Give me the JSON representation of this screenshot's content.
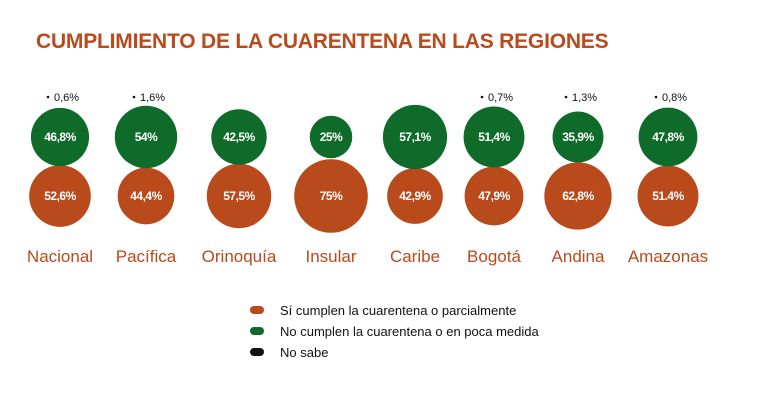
{
  "title": "CUMPLIMIENTO DE LA CUARENTENA EN LAS REGIONES",
  "colors": {
    "cumplen": "#b84a1c",
    "no_cumplen": "#0e6b2a",
    "no_sabe": "#111111"
  },
  "legend": [
    {
      "label": "Sí cumplen la cuarentena o parcialmente",
      "color": "#b84a1c"
    },
    {
      "label": "No cumplen la cuarentena o en poca medida",
      "color": "#0e6b2a"
    },
    {
      "label": "No sabe",
      "color": "#111111"
    }
  ],
  "chart_data": {
    "type": "bubble",
    "title": "CUMPLIMIENTO DE LA CUARENTENA EN LAS REGIONES",
    "categories": [
      "Nacional",
      "Pacífica",
      "Orinoquía",
      "Insular",
      "Caribe",
      "Bogotá",
      "Andina",
      "Amazonas"
    ],
    "series": [
      {
        "name": "Sí cumplen la cuarentena o parcialmente",
        "values": [
          52.6,
          44.4,
          57.5,
          75,
          42.9,
          47.9,
          62.8,
          51.4
        ],
        "labels": [
          "52,6%",
          "44,4%",
          "57,5%",
          "75%",
          "42,9%",
          "47,9%",
          "62,8%",
          "51.4%"
        ]
      },
      {
        "name": "No cumplen la cuarentena o en poca medida",
        "values": [
          46.8,
          54,
          42.5,
          25,
          57.1,
          51.4,
          35.9,
          47.8
        ],
        "labels": [
          "46,8%",
          "54%",
          "42,5%",
          "25%",
          "57,1%",
          "51,4%",
          "35,9%",
          "47,8%"
        ]
      },
      {
        "name": "No sabe",
        "values": [
          0.6,
          1.6,
          null,
          null,
          null,
          0.7,
          1.3,
          0.8
        ],
        "labels": [
          "0,6%",
          "1,6%",
          "",
          "",
          "",
          "0,7%",
          "1,3%",
          "0,8%"
        ]
      }
    ],
    "legend_position": "bottom-center"
  }
}
